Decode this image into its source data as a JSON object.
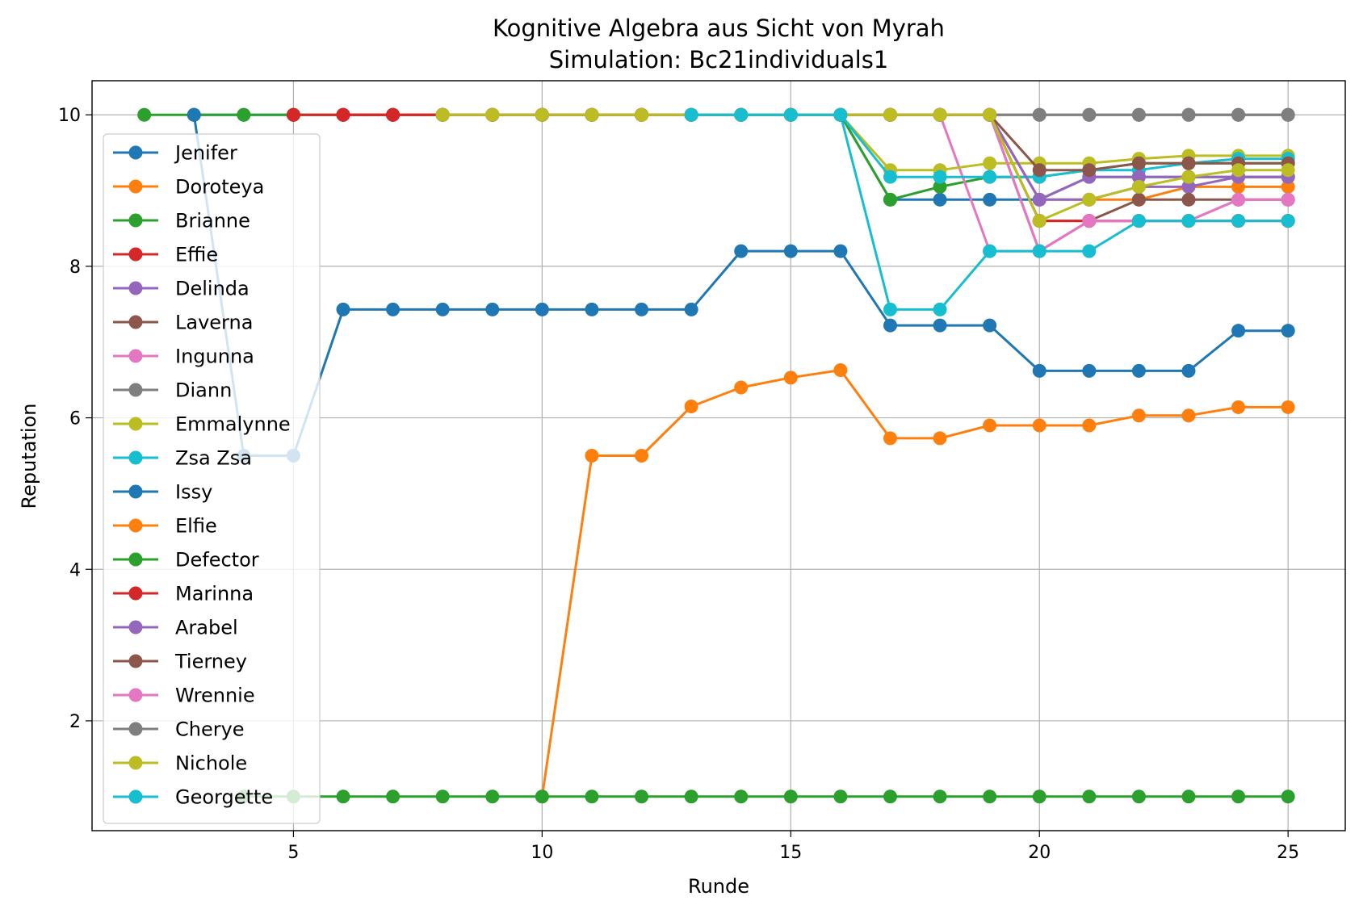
{
  "chart_data": {
    "type": "line",
    "title": "Kognitive Algebra aus Sicht von Myrah",
    "subtitle": "Simulation: Bc21individuals1",
    "xlabel": "Runde",
    "ylabel": "Reputation",
    "xlim": [
      0.95,
      26.15
    ],
    "ylim": [
      0.55,
      10.45
    ],
    "xticks": [
      5,
      10,
      15,
      20,
      25
    ],
    "yticks": [
      2,
      4,
      6,
      8,
      10
    ],
    "grid": true,
    "legend_position": "center-left",
    "marker": "circle",
    "series": [
      {
        "name": "Jenifer",
        "color": "#1f77b4",
        "x": [
          3,
          4,
          5,
          6,
          7,
          8,
          9,
          10,
          11,
          12,
          13,
          14,
          15,
          16,
          17,
          18,
          19,
          20,
          21,
          22,
          23,
          24,
          25
        ],
        "y": [
          10,
          10,
          10,
          10,
          10,
          10,
          10,
          10,
          10,
          10,
          10,
          10,
          10,
          10,
          8.88,
          8.88,
          8.88,
          8.88,
          9.18,
          9.18,
          9.18,
          9.18,
          9.18
        ]
      },
      {
        "name": "Doroteya",
        "color": "#ff7f0e",
        "x": [
          7,
          8,
          9,
          10,
          11,
          12,
          13,
          14,
          15,
          16,
          17,
          18,
          19,
          20,
          21,
          22,
          23,
          24,
          25
        ],
        "y": [
          10,
          10,
          10,
          10,
          10,
          10,
          10,
          10,
          10,
          10,
          10,
          10,
          10,
          8.88,
          8.88,
          8.88,
          9.05,
          9.05,
          9.05
        ]
      },
      {
        "name": "Brianne",
        "color": "#2ca02c",
        "x": [
          2,
          3,
          4,
          5,
          6,
          7,
          8,
          9,
          10,
          11,
          12,
          13,
          14,
          15,
          16,
          17,
          18,
          19,
          20,
          21,
          22,
          23,
          24,
          25
        ],
        "y": [
          10,
          10,
          10,
          10,
          10,
          10,
          10,
          10,
          10,
          10,
          10,
          10,
          10,
          10,
          10,
          8.88,
          9.05,
          9.18,
          9.18,
          9.27,
          9.36,
          9.36,
          9.36,
          9.36
        ]
      },
      {
        "name": "Effie",
        "color": "#d62728",
        "x": [
          5,
          6,
          7,
          8,
          9,
          10,
          11,
          12,
          13,
          14,
          15,
          16,
          17,
          18,
          19,
          20,
          21,
          22,
          23,
          24,
          25
        ],
        "y": [
          10,
          10,
          10,
          10,
          10,
          10,
          10,
          10,
          10,
          10,
          10,
          10,
          10,
          10,
          10,
          8.6,
          8.6,
          8.6,
          8.6,
          8.6,
          8.6
        ]
      },
      {
        "name": "Delinda",
        "color": "#9467bd",
        "x": [
          8,
          9,
          10,
          11,
          12,
          13,
          14,
          15,
          16,
          17,
          18,
          19,
          20,
          21,
          22,
          23,
          24,
          25
        ],
        "y": [
          10,
          10,
          10,
          10,
          10,
          10,
          10,
          10,
          10,
          10,
          10,
          10,
          8.88,
          8.88,
          9.05,
          9.05,
          9.18,
          9.18
        ]
      },
      {
        "name": "Laverna",
        "color": "#8c564b",
        "x": [
          8,
          9,
          10,
          11,
          12,
          13,
          14,
          15,
          16,
          17,
          18,
          19,
          20,
          21,
          22,
          23,
          24,
          25
        ],
        "y": [
          10,
          10,
          10,
          10,
          10,
          10,
          10,
          10,
          10,
          10,
          10,
          10,
          8.2,
          8.6,
          8.88,
          8.88,
          8.88,
          8.88
        ]
      },
      {
        "name": "Ingunna",
        "color": "#e377c2",
        "x": [
          8,
          9,
          10,
          11,
          12,
          13,
          14,
          15,
          16,
          17,
          18,
          19,
          20,
          21,
          22,
          23,
          24,
          25
        ],
        "y": [
          10,
          10,
          10,
          10,
          10,
          10,
          10,
          10,
          10,
          10,
          10,
          8.2,
          8.2,
          8.6,
          8.6,
          8.6,
          8.88,
          8.88
        ]
      },
      {
        "name": "Diann",
        "color": "#7f7f7f",
        "x": [
          7,
          8,
          9,
          10,
          11,
          12,
          13,
          14,
          15,
          16,
          17,
          18,
          19,
          20,
          21,
          22,
          23,
          24,
          25
        ],
        "y": [
          10,
          10,
          10,
          10,
          10,
          10,
          10,
          10,
          10,
          10,
          10,
          10,
          10,
          10,
          10,
          10,
          10,
          10,
          10
        ]
      },
      {
        "name": "Emmalynne",
        "color": "#bcbd22",
        "x": [
          8,
          9,
          10,
          11,
          12,
          13,
          14,
          15,
          16,
          17,
          18,
          19,
          20,
          21,
          22,
          23,
          24,
          25
        ],
        "y": [
          10,
          10,
          10,
          10,
          10,
          10,
          10,
          10,
          10,
          9.27,
          9.27,
          9.36,
          9.36,
          9.36,
          9.42,
          9.46,
          9.46,
          9.46
        ]
      },
      {
        "name": "Zsa Zsa",
        "color": "#17becf",
        "x": [
          13,
          14,
          15,
          16,
          17,
          18,
          19,
          20,
          21,
          22,
          23,
          24,
          25
        ],
        "y": [
          10,
          10,
          10,
          10,
          9.18,
          9.18,
          9.18,
          9.18,
          9.27,
          9.27,
          9.36,
          9.42,
          9.42
        ]
      },
      {
        "name": "Issy",
        "color": "#1f77b4",
        "x": [
          3,
          4,
          5,
          6,
          7,
          8,
          9,
          10,
          11,
          12,
          13,
          14,
          15,
          16,
          17,
          18,
          19,
          20,
          21,
          22,
          23,
          24,
          25
        ],
        "y": [
          10,
          5.5,
          5.5,
          7.43,
          7.43,
          7.43,
          7.43,
          7.43,
          7.43,
          7.43,
          7.43,
          8.2,
          8.2,
          8.2,
          7.22,
          7.22,
          7.22,
          6.62,
          6.62,
          6.62,
          6.62,
          7.15,
          7.15
        ]
      },
      {
        "name": "Elfie",
        "color": "#ff7f0e",
        "x": [
          10,
          11,
          12,
          13,
          14,
          15,
          16,
          17,
          18,
          19,
          20,
          21,
          22,
          23,
          24,
          25
        ],
        "y": [
          1,
          5.5,
          5.5,
          6.15,
          6.4,
          6.53,
          6.63,
          5.73,
          5.73,
          5.9,
          5.9,
          5.9,
          6.03,
          6.03,
          6.14,
          6.14
        ]
      },
      {
        "name": "Defector",
        "color": "#2ca02c",
        "x": [
          4,
          5,
          6,
          7,
          8,
          9,
          10,
          11,
          12,
          13,
          14,
          15,
          16,
          17,
          18,
          19,
          20,
          21,
          22,
          23,
          24,
          25
        ],
        "y": [
          1,
          1,
          1,
          1,
          1,
          1,
          1,
          1,
          1,
          1,
          1,
          1,
          1,
          1,
          1,
          1,
          1,
          1,
          1,
          1,
          1,
          1
        ]
      },
      {
        "name": "Marinna",
        "color": "#d62728",
        "x": [
          6,
          7,
          8,
          9,
          10,
          11,
          12,
          13,
          14,
          15,
          16,
          17,
          18,
          19,
          20,
          21,
          22,
          23,
          24,
          25
        ],
        "y": [
          10,
          10,
          10,
          10,
          10,
          10,
          10,
          10,
          10,
          10,
          10,
          10,
          10,
          10,
          8.6,
          8.6,
          8.6,
          8.6,
          8.6,
          8.6
        ]
      },
      {
        "name": "Arabel",
        "color": "#9467bd",
        "x": [
          8,
          9,
          10,
          11,
          12,
          13,
          14,
          15,
          16,
          17,
          18,
          19,
          20,
          21,
          22,
          23,
          24,
          25
        ],
        "y": [
          10,
          10,
          10,
          10,
          10,
          10,
          10,
          10,
          10,
          10,
          10,
          10,
          8.88,
          9.18,
          9.18,
          9.18,
          9.18,
          9.18
        ]
      },
      {
        "name": "Tierney",
        "color": "#8c564b",
        "x": [
          8,
          9,
          10,
          11,
          12,
          13,
          14,
          15,
          16,
          17,
          18,
          19,
          20,
          21,
          22,
          23,
          24,
          25
        ],
        "y": [
          10,
          10,
          10,
          10,
          10,
          10,
          10,
          10,
          10,
          10,
          10,
          10,
          9.27,
          9.27,
          9.36,
          9.36,
          9.36,
          9.36
        ]
      },
      {
        "name": "Wrennie",
        "color": "#e377c2",
        "x": [
          8,
          9,
          10,
          11,
          12,
          13,
          14,
          15,
          16,
          17,
          18,
          19,
          20,
          21,
          22,
          23,
          24,
          25
        ],
        "y": [
          10,
          10,
          10,
          10,
          10,
          10,
          10,
          10,
          10,
          10,
          10,
          10,
          8.2,
          8.6,
          8.6,
          8.6,
          8.88,
          8.88
        ]
      },
      {
        "name": "Cherye",
        "color": "#7f7f7f",
        "x": [
          8,
          9,
          10,
          11,
          12,
          13,
          14,
          15,
          16,
          17,
          18,
          19,
          20,
          21,
          22,
          23,
          24,
          25
        ],
        "y": [
          10,
          10,
          10,
          10,
          10,
          10,
          10,
          10,
          10,
          10,
          10,
          10,
          10,
          10,
          10,
          10,
          10,
          10
        ]
      },
      {
        "name": "Nichole",
        "color": "#bcbd22",
        "x": [
          8,
          9,
          10,
          11,
          12,
          13,
          14,
          15,
          16,
          17,
          18,
          19,
          20,
          21,
          22,
          23,
          24,
          25
        ],
        "y": [
          10,
          10,
          10,
          10,
          10,
          10,
          10,
          10,
          10,
          10,
          10,
          10,
          8.6,
          8.88,
          9.05,
          9.18,
          9.27,
          9.27
        ]
      },
      {
        "name": "Georgette",
        "color": "#17becf",
        "x": [
          13,
          14,
          15,
          16,
          17,
          18,
          19,
          20,
          21,
          22,
          23,
          24,
          25
        ],
        "y": [
          10,
          10,
          10,
          10,
          7.43,
          7.43,
          8.2,
          8.2,
          8.2,
          8.6,
          8.6,
          8.6,
          8.6
        ]
      }
    ]
  }
}
